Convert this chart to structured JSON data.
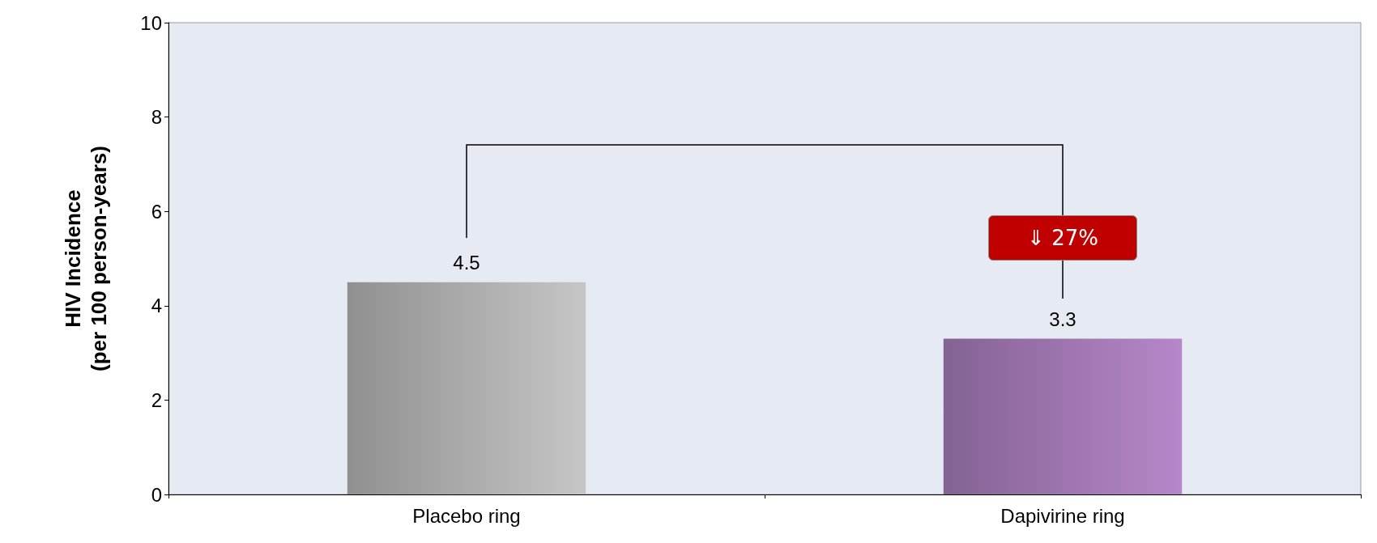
{
  "chart_data": {
    "type": "bar",
    "ylabel": "HIV Incidence\n(per 100 person-years)",
    "categories": [
      "Placebo ring",
      "Dapivirine ring"
    ],
    "values": [
      4.5,
      3.3
    ],
    "colors": [
      "#b4b4b4",
      "#a57bb8"
    ],
    "ylim": [
      0,
      10
    ],
    "yticks": [
      0,
      2,
      4,
      6,
      8,
      10
    ],
    "grid": false,
    "data_labels": true,
    "annotations": [
      "⇓ 27%"
    ]
  }
}
